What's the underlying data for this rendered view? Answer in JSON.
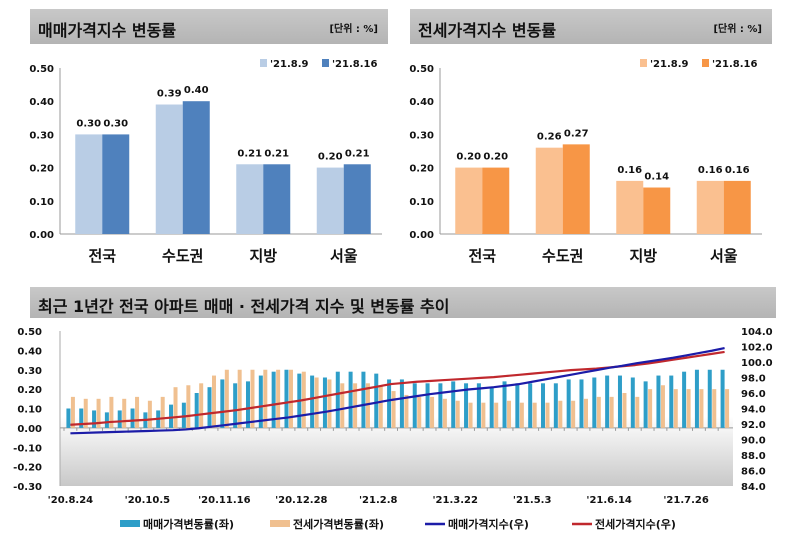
{
  "chart_data": [
    {
      "type": "bar",
      "title": "매매가격지수 변동률",
      "unit": "[단위 : %]",
      "categories": [
        "전국",
        "수도권",
        "지방",
        "서울"
      ],
      "series": [
        {
          "name": "'21.8.9",
          "values": [
            0.3,
            0.39,
            0.21,
            0.2
          ],
          "color": "#b9cde5"
        },
        {
          "name": "'21.8.16",
          "values": [
            0.3,
            0.4,
            0.21,
            0.21
          ],
          "color": "#4f81bd"
        }
      ],
      "ylim": [
        0,
        0.5
      ],
      "yticks": [
        "0.00",
        "0.10",
        "0.20",
        "0.30",
        "0.40",
        "0.50"
      ],
      "legend": "top-right"
    },
    {
      "type": "bar",
      "title": "전세가격지수 변동률",
      "unit": "[단위 : %]",
      "categories": [
        "전국",
        "수도권",
        "지방",
        "서울"
      ],
      "series": [
        {
          "name": "'21.8.9",
          "values": [
            0.2,
            0.26,
            0.16,
            0.16
          ],
          "color": "#fac090"
        },
        {
          "name": "'21.8.16",
          "values": [
            0.2,
            0.27,
            0.14,
            0.16
          ],
          "color": "#f79646"
        }
      ],
      "ylim": [
        0,
        0.5
      ],
      "yticks": [
        "0.00",
        "0.10",
        "0.20",
        "0.30",
        "0.40",
        "0.50"
      ],
      "legend": "top-right"
    },
    {
      "type": "bar+line",
      "title": "최근 1년간 전국 아파트 매매 · 전세가격 지수 및 변동률 추이",
      "xticks": [
        "'20.8.24",
        "'20.10.5",
        "'20.11.16",
        "'20.12.28",
        "'21.2.8",
        "'21.3.22",
        "'21.5.3",
        "'21.6.14",
        "'21.7.26"
      ],
      "ylim_left": [
        -0.3,
        0.5
      ],
      "yticks_left": [
        "0.50",
        "0.40",
        "0.30",
        "0.20",
        "0.10",
        "0.00",
        "-0.10",
        "-0.20",
        "-0.30"
      ],
      "ylim_right": [
        84,
        104
      ],
      "yticks_right": [
        "104.0",
        "102.0",
        "100.0",
        "98.0",
        "96.0",
        "94.0",
        "92.0",
        "90.0",
        "88.0",
        "86.0",
        "84.0"
      ],
      "legend": "bottom",
      "series": [
        {
          "name": "매매가격변동률(좌)",
          "type": "bar",
          "axis": "left",
          "color": "#2e9ec8",
          "values": [
            0.1,
            0.1,
            0.09,
            0.08,
            0.09,
            0.1,
            0.08,
            0.09,
            0.12,
            0.13,
            0.18,
            0.21,
            0.25,
            0.23,
            0.24,
            0.27,
            0.29,
            0.3,
            0.28,
            0.27,
            0.26,
            0.29,
            0.29,
            0.29,
            0.28,
            0.25,
            0.25,
            0.23,
            0.23,
            0.23,
            0.24,
            0.23,
            0.23,
            0.21,
            0.24,
            0.23,
            0.23,
            0.23,
            0.23,
            0.25,
            0.25,
            0.26,
            0.27,
            0.27,
            0.26,
            0.24,
            0.27,
            0.27,
            0.29,
            0.3,
            0.3,
            0.3
          ]
        },
        {
          "name": "전세가격변동률(좌)",
          "type": "bar",
          "axis": "left",
          "color": "#f0c090",
          "values": [
            0.16,
            0.15,
            0.15,
            0.16,
            0.15,
            0.16,
            0.14,
            0.16,
            0.21,
            0.22,
            0.23,
            0.27,
            0.3,
            0.3,
            0.3,
            0.3,
            0.3,
            0.3,
            0.29,
            0.26,
            0.25,
            0.23,
            0.23,
            0.23,
            0.22,
            0.19,
            0.17,
            0.16,
            0.16,
            0.15,
            0.14,
            0.13,
            0.13,
            0.13,
            0.14,
            0.13,
            0.13,
            0.13,
            0.14,
            0.14,
            0.15,
            0.16,
            0.16,
            0.18,
            0.16,
            0.2,
            0.22,
            0.2,
            0.2,
            0.2,
            0.2,
            0.2
          ]
        },
        {
          "name": "매매가격지수(우)",
          "type": "line",
          "axis": "right",
          "color": "#1c1ca8",
          "values": [
            90.8,
            90.85,
            90.9,
            90.95,
            91.0,
            91.05,
            91.1,
            91.15,
            91.2,
            91.3,
            91.45,
            91.65,
            91.85,
            92.05,
            92.25,
            92.45,
            92.65,
            92.85,
            93.1,
            93.35,
            93.6,
            93.9,
            94.2,
            94.5,
            94.8,
            95.1,
            95.35,
            95.6,
            95.85,
            96.05,
            96.25,
            96.45,
            96.6,
            96.75,
            96.95,
            97.15,
            97.45,
            97.75,
            98.05,
            98.35,
            98.65,
            98.95,
            99.25,
            99.5,
            99.8,
            100.05,
            100.3,
            100.55,
            100.85,
            101.15,
            101.45,
            101.8
          ]
        },
        {
          "name": "전세가격지수(우)",
          "type": "line",
          "axis": "right",
          "color": "#c0282d",
          "values": [
            91.9,
            92.0,
            92.1,
            92.25,
            92.35,
            92.45,
            92.55,
            92.7,
            92.85,
            93.0,
            93.2,
            93.4,
            93.6,
            93.8,
            94.05,
            94.3,
            94.55,
            94.8,
            95.05,
            95.35,
            95.65,
            95.95,
            96.25,
            96.55,
            96.85,
            97.15,
            97.3,
            97.45,
            97.55,
            97.65,
            97.75,
            97.85,
            97.95,
            98.05,
            98.2,
            98.35,
            98.5,
            98.65,
            98.8,
            98.95,
            99.05,
            99.15,
            99.3,
            99.45,
            99.6,
            99.8,
            100.05,
            100.3,
            100.55,
            100.8,
            101.05,
            101.3
          ]
        }
      ]
    }
  ]
}
